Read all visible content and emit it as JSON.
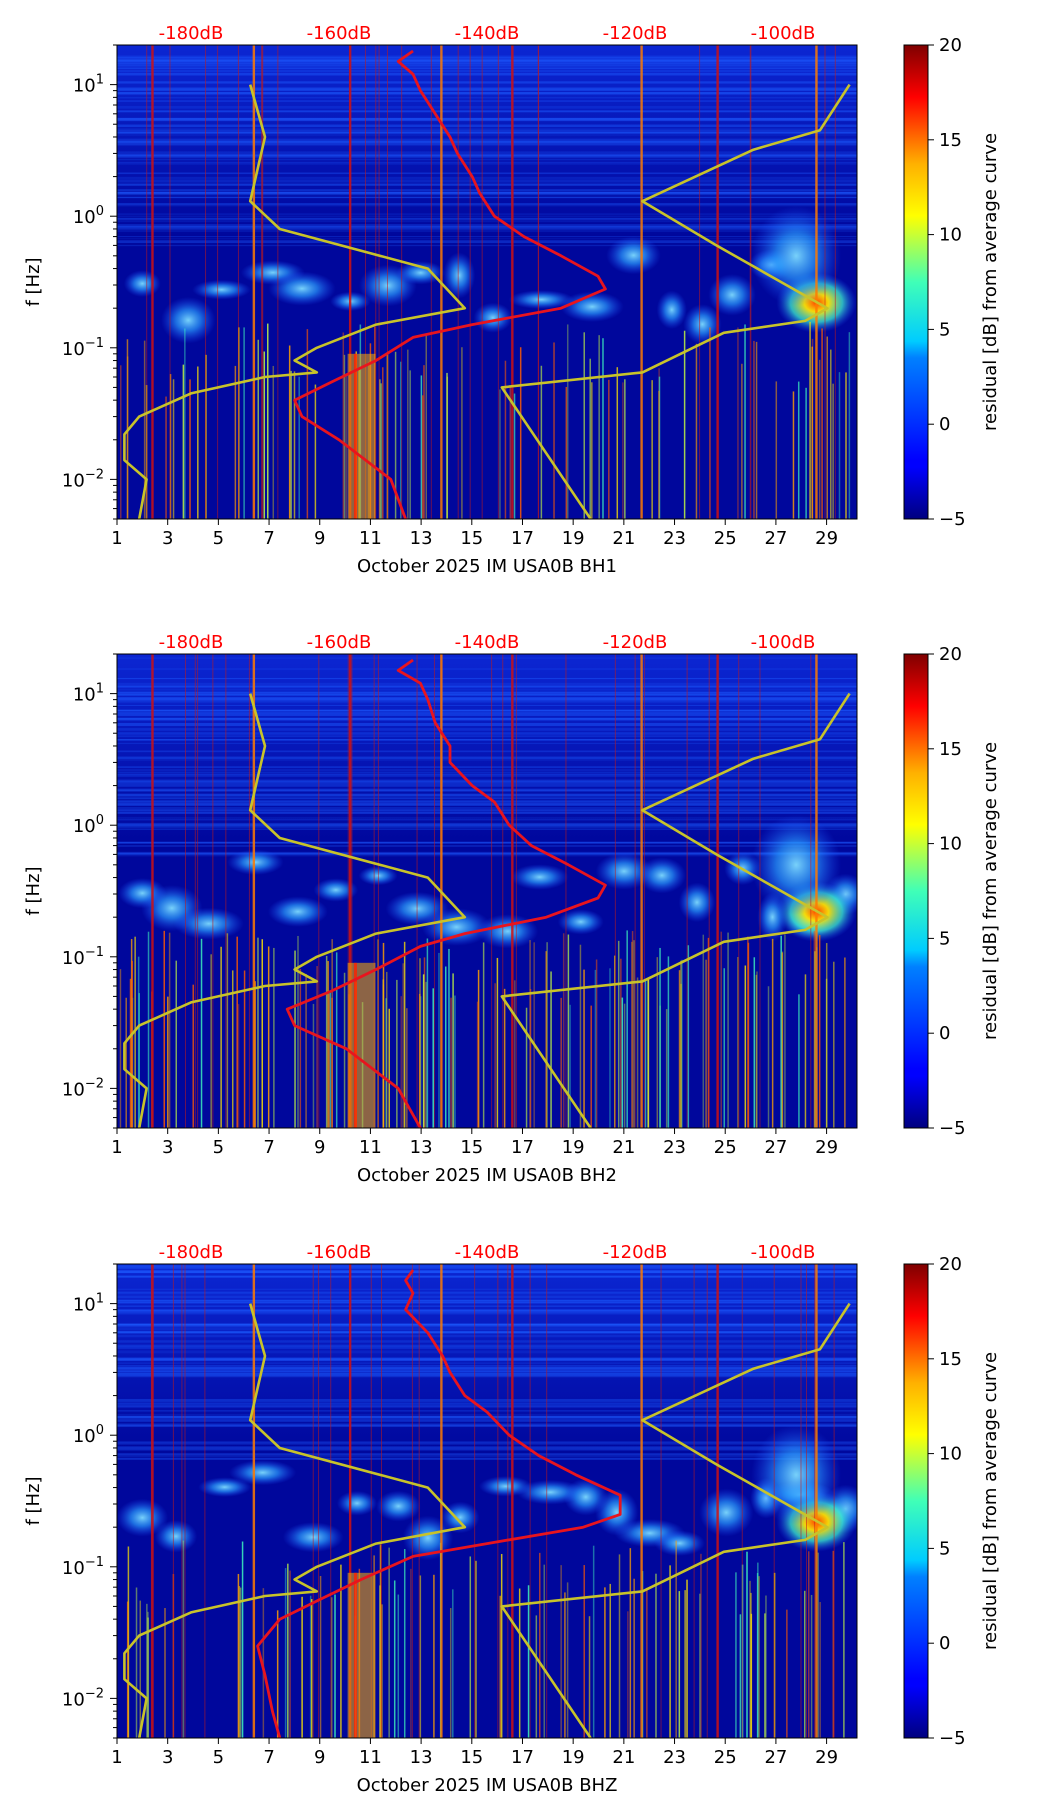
{
  "chart_data": [
    {
      "type": "heatmap",
      "station_label": "October 2025 IM USA0B  BH1",
      "ylabel": "f [Hz]",
      "x_ticks": [
        "1",
        "3",
        "5",
        "7",
        "9",
        "11",
        "13",
        "15",
        "17",
        "19",
        "21",
        "23",
        "25",
        "27",
        "29"
      ],
      "x_tick_values": [
        1,
        3,
        5,
        7,
        9,
        11,
        13,
        15,
        17,
        19,
        21,
        23,
        25,
        27,
        29
      ],
      "xlim": [
        1,
        30.2
      ],
      "ylim_hz": [
        0.005,
        20
      ],
      "y_ticks": [
        {
          "mant": "10",
          "exp": "1",
          "value": 10
        },
        {
          "mant": "10",
          "exp": "0",
          "value": 1
        },
        {
          "mant": "10",
          "exp": "−1",
          "value": 0.1
        },
        {
          "mant": "10",
          "exp": "−2",
          "value": 0.01
        }
      ],
      "db_labels": [
        "-180dB",
        "-160dB",
        "-140dB",
        "-120dB",
        "-100dB"
      ],
      "db_label_values": [
        -180,
        -160,
        -140,
        -120,
        -100
      ],
      "db_axis_range": [
        -190,
        -90
      ],
      "colorbar": {
        "label": "residual [dB] from average curve",
        "ticks": [
          "−5",
          "0",
          "5",
          "10",
          "15",
          "20"
        ],
        "tick_values": [
          -5,
          0,
          5,
          10,
          15,
          20
        ],
        "range": [
          -5,
          20
        ]
      },
      "bright_day_lines": [
        2.4,
        6.4,
        10.2,
        13.8,
        16.6,
        21.7,
        24.7,
        28.6
      ],
      "noise_model_low": [
        {
          "f": 10,
          "db": -172
        },
        {
          "f": 4,
          "db": -170
        },
        {
          "f": 1.3,
          "db": -172
        },
        {
          "f": 0.8,
          "db": -168
        },
        {
          "f": 0.4,
          "db": -148
        },
        {
          "f": 0.2,
          "db": -143
        },
        {
          "f": 0.15,
          "db": -155
        },
        {
          "f": 0.1,
          "db": -163
        },
        {
          "f": 0.08,
          "db": -166
        },
        {
          "f": 0.065,
          "db": -163
        },
        {
          "f": 0.06,
          "db": -170
        },
        {
          "f": 0.045,
          "db": -180
        },
        {
          "f": 0.03,
          "db": -187
        },
        {
          "f": 0.022,
          "db": -189
        },
        {
          "f": 0.014,
          "db": -189
        },
        {
          "f": 0.01,
          "db": -186
        },
        {
          "f": 0.005,
          "db": -187
        }
      ],
      "noise_model_high": [
        {
          "f": 10,
          "db": -91
        },
        {
          "f": 4.5,
          "db": -95
        },
        {
          "f": 3.2,
          "db": -104
        },
        {
          "f": 1.3,
          "db": -119
        },
        {
          "f": 0.6,
          "db": -109
        },
        {
          "f": 0.2,
          "db": -94
        },
        {
          "f": 0.16,
          "db": -97
        },
        {
          "f": 0.13,
          "db": -108
        },
        {
          "f": 0.065,
          "db": -119
        },
        {
          "f": 0.05,
          "db": -138
        },
        {
          "f": 0.005,
          "db": -126
        }
      ],
      "average_psd": [
        {
          "f": 18,
          "db": -150
        },
        {
          "f": 15,
          "db": -152
        },
        {
          "f": 12,
          "db": -150
        },
        {
          "f": 9,
          "db": -149
        },
        {
          "f": 6,
          "db": -147
        },
        {
          "f": 4,
          "db": -145
        },
        {
          "f": 3,
          "db": -144
        },
        {
          "f": 2,
          "db": -142
        },
        {
          "f": 1.5,
          "db": -141
        },
        {
          "f": 1.0,
          "db": -139
        },
        {
          "f": 0.7,
          "db": -135
        },
        {
          "f": 0.5,
          "db": -130
        },
        {
          "f": 0.35,
          "db": -125
        },
        {
          "f": 0.28,
          "db": -124
        },
        {
          "f": 0.2,
          "db": -130
        },
        {
          "f": 0.15,
          "db": -142
        },
        {
          "f": 0.12,
          "db": -150
        },
        {
          "f": 0.08,
          "db": -155
        },
        {
          "f": 0.055,
          "db": -161
        },
        {
          "f": 0.04,
          "db": -166
        },
        {
          "f": 0.03,
          "db": -165
        },
        {
          "f": 0.02,
          "db": -160
        },
        {
          "f": 0.01,
          "db": -153
        },
        {
          "f": 0.005,
          "db": -151
        }
      ]
    },
    {
      "type": "heatmap",
      "station_label": "October 2025 IM USA0B  BH2",
      "ylabel": "f [Hz]",
      "x_ticks": [
        "1",
        "3",
        "5",
        "7",
        "9",
        "11",
        "13",
        "15",
        "17",
        "19",
        "21",
        "23",
        "25",
        "27",
        "29"
      ],
      "x_tick_values": [
        1,
        3,
        5,
        7,
        9,
        11,
        13,
        15,
        17,
        19,
        21,
        23,
        25,
        27,
        29
      ],
      "xlim": [
        1,
        30.2
      ],
      "ylim_hz": [
        0.005,
        20
      ],
      "y_ticks": [
        {
          "mant": "10",
          "exp": "1",
          "value": 10
        },
        {
          "mant": "10",
          "exp": "0",
          "value": 1
        },
        {
          "mant": "10",
          "exp": "−1",
          "value": 0.1
        },
        {
          "mant": "10",
          "exp": "−2",
          "value": 0.01
        }
      ],
      "db_labels": [
        "-180dB",
        "-160dB",
        "-140dB",
        "-120dB",
        "-100dB"
      ],
      "db_label_values": [
        -180,
        -160,
        -140,
        -120,
        -100
      ],
      "db_axis_range": [
        -190,
        -90
      ],
      "colorbar": {
        "label": "residual [dB] from average curve",
        "ticks": [
          "−5",
          "0",
          "5",
          "10",
          "15",
          "20"
        ],
        "tick_values": [
          -5,
          0,
          5,
          10,
          15,
          20
        ],
        "range": [
          -5,
          20
        ]
      },
      "bright_day_lines": [
        2.4,
        6.4,
        10.2,
        13.8,
        16.6,
        21.7,
        24.7,
        28.6
      ],
      "noise_model_low": [
        {
          "f": 10,
          "db": -172
        },
        {
          "f": 4,
          "db": -170
        },
        {
          "f": 1.3,
          "db": -172
        },
        {
          "f": 0.8,
          "db": -168
        },
        {
          "f": 0.4,
          "db": -148
        },
        {
          "f": 0.2,
          "db": -143
        },
        {
          "f": 0.15,
          "db": -155
        },
        {
          "f": 0.1,
          "db": -163
        },
        {
          "f": 0.08,
          "db": -166
        },
        {
          "f": 0.065,
          "db": -163
        },
        {
          "f": 0.06,
          "db": -170
        },
        {
          "f": 0.045,
          "db": -180
        },
        {
          "f": 0.03,
          "db": -187
        },
        {
          "f": 0.022,
          "db": -189
        },
        {
          "f": 0.014,
          "db": -189
        },
        {
          "f": 0.01,
          "db": -186
        },
        {
          "f": 0.005,
          "db": -187
        }
      ],
      "noise_model_high": [
        {
          "f": 10,
          "db": -91
        },
        {
          "f": 4.5,
          "db": -95
        },
        {
          "f": 3.2,
          "db": -104
        },
        {
          "f": 1.3,
          "db": -119
        },
        {
          "f": 0.6,
          "db": -109
        },
        {
          "f": 0.2,
          "db": -94
        },
        {
          "f": 0.16,
          "db": -97
        },
        {
          "f": 0.13,
          "db": -108
        },
        {
          "f": 0.065,
          "db": -119
        },
        {
          "f": 0.05,
          "db": -138
        },
        {
          "f": 0.005,
          "db": -126
        }
      ],
      "average_psd": [
        {
          "f": 18,
          "db": -150
        },
        {
          "f": 15,
          "db": -152
        },
        {
          "f": 12,
          "db": -149
        },
        {
          "f": 9,
          "db": -148
        },
        {
          "f": 6,
          "db": -147
        },
        {
          "f": 4,
          "db": -145
        },
        {
          "f": 3,
          "db": -145
        },
        {
          "f": 2,
          "db": -142
        },
        {
          "f": 1.5,
          "db": -139
        },
        {
          "f": 1.0,
          "db": -137
        },
        {
          "f": 0.7,
          "db": -134
        },
        {
          "f": 0.5,
          "db": -129
        },
        {
          "f": 0.35,
          "db": -124
        },
        {
          "f": 0.28,
          "db": -125
        },
        {
          "f": 0.2,
          "db": -132
        },
        {
          "f": 0.15,
          "db": -143
        },
        {
          "f": 0.12,
          "db": -149
        },
        {
          "f": 0.08,
          "db": -155
        },
        {
          "f": 0.055,
          "db": -161
        },
        {
          "f": 0.04,
          "db": -167
        },
        {
          "f": 0.03,
          "db": -166
        },
        {
          "f": 0.02,
          "db": -159
        },
        {
          "f": 0.01,
          "db": -152
        },
        {
          "f": 0.005,
          "db": -149
        }
      ]
    },
    {
      "type": "heatmap",
      "station_label": "October 2025 IM USA0B  BHZ",
      "ylabel": "f [Hz]",
      "x_ticks": [
        "1",
        "3",
        "5",
        "7",
        "9",
        "11",
        "13",
        "15",
        "17",
        "19",
        "21",
        "23",
        "25",
        "27",
        "29"
      ],
      "x_tick_values": [
        1,
        3,
        5,
        7,
        9,
        11,
        13,
        15,
        17,
        19,
        21,
        23,
        25,
        27,
        29
      ],
      "xlim": [
        1,
        30.2
      ],
      "ylim_hz": [
        0.005,
        20
      ],
      "y_ticks": [
        {
          "mant": "10",
          "exp": "1",
          "value": 10
        },
        {
          "mant": "10",
          "exp": "0",
          "value": 1
        },
        {
          "mant": "10",
          "exp": "−1",
          "value": 0.1
        },
        {
          "mant": "10",
          "exp": "−2",
          "value": 0.01
        }
      ],
      "db_labels": [
        "-180dB",
        "-160dB",
        "-140dB",
        "-120dB",
        "-100dB"
      ],
      "db_label_values": [
        -180,
        -160,
        -140,
        -120,
        -100
      ],
      "db_axis_range": [
        -190,
        -90
      ],
      "colorbar": {
        "label": "residual [dB] from average curve",
        "ticks": [
          "−5",
          "0",
          "5",
          "10",
          "15",
          "20"
        ],
        "tick_values": [
          -5,
          0,
          5,
          10,
          15,
          20
        ],
        "range": [
          -5,
          20
        ]
      },
      "bright_day_lines": [
        2.4,
        6.4,
        10.2,
        13.8,
        16.6,
        21.7,
        24.7,
        28.6
      ],
      "noise_model_low": [
        {
          "f": 10,
          "db": -172
        },
        {
          "f": 4,
          "db": -170
        },
        {
          "f": 1.3,
          "db": -172
        },
        {
          "f": 0.8,
          "db": -168
        },
        {
          "f": 0.4,
          "db": -148
        },
        {
          "f": 0.2,
          "db": -143
        },
        {
          "f": 0.15,
          "db": -155
        },
        {
          "f": 0.1,
          "db": -163
        },
        {
          "f": 0.08,
          "db": -166
        },
        {
          "f": 0.065,
          "db": -163
        },
        {
          "f": 0.06,
          "db": -170
        },
        {
          "f": 0.045,
          "db": -180
        },
        {
          "f": 0.03,
          "db": -187
        },
        {
          "f": 0.022,
          "db": -189
        },
        {
          "f": 0.014,
          "db": -189
        },
        {
          "f": 0.01,
          "db": -186
        },
        {
          "f": 0.005,
          "db": -187
        }
      ],
      "noise_model_high": [
        {
          "f": 10,
          "db": -91
        },
        {
          "f": 4.5,
          "db": -95
        },
        {
          "f": 3.2,
          "db": -104
        },
        {
          "f": 1.3,
          "db": -119
        },
        {
          "f": 0.6,
          "db": -109
        },
        {
          "f": 0.2,
          "db": -94
        },
        {
          "f": 0.16,
          "db": -97
        },
        {
          "f": 0.13,
          "db": -108
        },
        {
          "f": 0.065,
          "db": -119
        },
        {
          "f": 0.05,
          "db": -138
        },
        {
          "f": 0.005,
          "db": -126
        }
      ],
      "average_psd": [
        {
          "f": 18,
          "db": -150
        },
        {
          "f": 15,
          "db": -151
        },
        {
          "f": 12,
          "db": -150
        },
        {
          "f": 9,
          "db": -151
        },
        {
          "f": 6,
          "db": -148
        },
        {
          "f": 4,
          "db": -146
        },
        {
          "f": 3,
          "db": -145
        },
        {
          "f": 2,
          "db": -143
        },
        {
          "f": 1.5,
          "db": -140
        },
        {
          "f": 1.0,
          "db": -137
        },
        {
          "f": 0.7,
          "db": -133
        },
        {
          "f": 0.5,
          "db": -128
        },
        {
          "f": 0.35,
          "db": -122
        },
        {
          "f": 0.25,
          "db": -122
        },
        {
          "f": 0.2,
          "db": -127
        },
        {
          "f": 0.15,
          "db": -140
        },
        {
          "f": 0.12,
          "db": -150
        },
        {
          "f": 0.08,
          "db": -157
        },
        {
          "f": 0.055,
          "db": -163
        },
        {
          "f": 0.04,
          "db": -168
        },
        {
          "f": 0.025,
          "db": -171
        },
        {
          "f": 0.015,
          "db": -170
        },
        {
          "f": 0.008,
          "db": -169
        },
        {
          "f": 0.005,
          "db": -168
        }
      ]
    }
  ]
}
